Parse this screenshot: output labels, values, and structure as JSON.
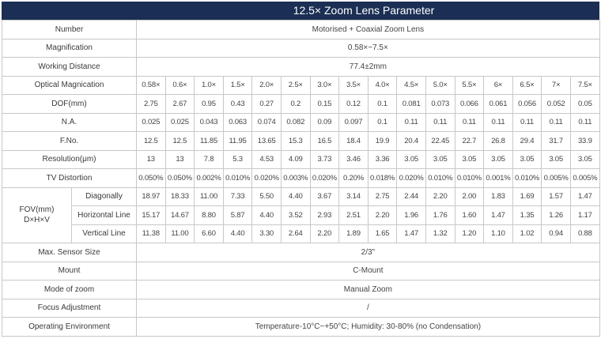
{
  "title": "12.5× Zoom Lens Parameter",
  "colors": {
    "header_bg": "#1b2f55",
    "header_text": "#ffffff",
    "border": "#c8c8c8"
  },
  "spec_rows_top": [
    {
      "label": "Number",
      "value": "Motorised + Coaxial Zoom Lens"
    },
    {
      "label": "Magnification",
      "value": "0.58×~7.5×"
    },
    {
      "label": "Working Distance",
      "value": "77.4±2mm"
    }
  ],
  "grid_rows": [
    {
      "label": "Optical Magnication",
      "values": [
        "0.58×",
        "0.6×",
        "1.0×",
        "1.5×",
        "2.0×",
        "2.5×",
        "3.0×",
        "3.5×",
        "4.0×",
        "4.5×",
        "5.0×",
        "5.5×",
        "6×",
        "6.5×",
        "7×",
        "7.5×"
      ]
    },
    {
      "label": "DOF(mm)",
      "values": [
        "2.75",
        "2.67",
        "0.95",
        "0.43",
        "0.27",
        "0.2",
        "0.15",
        "0.12",
        "0.1",
        "0.081",
        "0.073",
        "0.066",
        "0.061",
        "0.056",
        "0.052",
        "0.05"
      ]
    },
    {
      "label": "N.A.",
      "values": [
        "0.025",
        "0.025",
        "0.043",
        "0.063",
        "0.074",
        "0.082",
        "0.09",
        "0.097",
        "0.1",
        "0.11",
        "0.11",
        "0.11",
        "0.11",
        "0.11",
        "0.11",
        "0.11"
      ]
    },
    {
      "label": "F.No.",
      "values": [
        "12.5",
        "12.5",
        "11.85",
        "11.95",
        "13.65",
        "15.3",
        "16.5",
        "18.4",
        "19.9",
        "20.4",
        "22.45",
        "22.7",
        "26.8",
        "29.4",
        "31.7",
        "33.9"
      ]
    },
    {
      "label": "Resolution(μm)",
      "values": [
        "13",
        "13",
        "7.8",
        "5.3",
        "4.53",
        "4.09",
        "3.73",
        "3.46",
        "3.36",
        "3.05",
        "3.05",
        "3.05",
        "3.05",
        "3.05",
        "3.05",
        "3.05"
      ]
    },
    {
      "label": "TV Distortion",
      "values": [
        "0.050%",
        "0.050%",
        "0.002%",
        "0.010%",
        "0.020%",
        "0.003%",
        "0.020%",
        "0.20%",
        "0.018%",
        "0.020%",
        "0.010%",
        "0.010%",
        "0.001%",
        "0.010%",
        "0.005%",
        "0.005%"
      ]
    }
  ],
  "fov": {
    "label_line1": "FOV(mm)",
    "label_line2": "D×H×V",
    "rows": [
      {
        "label": "Diagonally",
        "values": [
          "18.97",
          "18.33",
          "11.00",
          "7.33",
          "5.50",
          "4.40",
          "3.67",
          "3.14",
          "2.75",
          "2.44",
          "2.20",
          "2.00",
          "1.83",
          "1.69",
          "1.57",
          "1.47"
        ]
      },
      {
        "label": "Horizontal Line",
        "values": [
          "15.17",
          "14.67",
          "8.80",
          "5.87",
          "4.40",
          "3.52",
          "2.93",
          "2.51",
          "2.20",
          "1.96",
          "1.76",
          "1.60",
          "1.47",
          "1.35",
          "1.26",
          "1.17"
        ]
      },
      {
        "label": "Vertical Line",
        "values": [
          "11.38",
          "11.00",
          "6.60",
          "4.40",
          "3.30",
          "2.64",
          "2.20",
          "1.89",
          "1.65",
          "1.47",
          "1.32",
          "1.20",
          "1.10",
          "1.02",
          "0.94",
          "0.88"
        ]
      }
    ]
  },
  "spec_rows_bottom": [
    {
      "label": "Max. Sensor Size",
      "value": "2/3\""
    },
    {
      "label": "Mount",
      "value": "C-Mount"
    },
    {
      "label": "Mode of zoom",
      "value": "Manual Zoom"
    },
    {
      "label": "Focus Adjustment",
      "value": "/"
    },
    {
      "label": "Operating Environment",
      "value": "Temperature-10°C~+50°C;  Humidity: 30-80% (no Condensation)"
    }
  ]
}
